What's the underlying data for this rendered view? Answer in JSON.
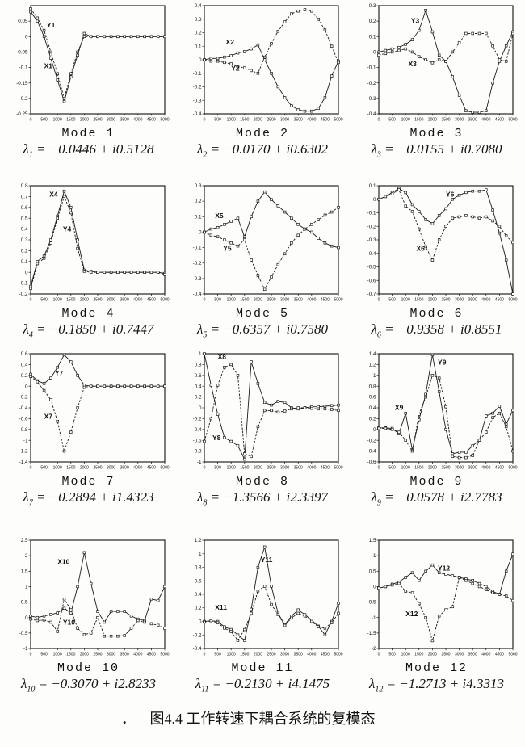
{
  "figure": {
    "caption": "图4.4 工作转速下耦合系统的复模态",
    "stray_mark": "."
  },
  "shared_x": {
    "label": "",
    "ticks": [
      0,
      500,
      1000,
      1500,
      2000,
      2500,
      3000,
      3500,
      4000,
      4500,
      5000
    ],
    "points": [
      0,
      250,
      500,
      750,
      1000,
      1250,
      1500,
      1750,
      2000,
      2250,
      2500,
      2750,
      3000,
      3250,
      3500,
      3750,
      4000,
      4250,
      4500,
      4750,
      5000
    ],
    "xlim": [
      0,
      5000
    ],
    "grid": false,
    "legend": "in-plot series labels"
  },
  "chart_data": [
    {
      "type": "line",
      "mode_label": "Mode 1",
      "lambda": {
        "sub": "1",
        "real": "−0.0446",
        "imag": "0.5128"
      },
      "ylim": [
        -0.25,
        0.1
      ],
      "yticks": [
        0.05,
        0,
        -0.05,
        -0.1,
        -0.15,
        -0.2,
        -0.25
      ],
      "series": [
        {
          "name": "X1",
          "dash": false,
          "label_pos": [
            0.1,
            0.58
          ],
          "values": [
            0.08,
            0.05,
            0.0,
            -0.07,
            -0.14,
            -0.21,
            -0.13,
            -0.06,
            0.01,
            0,
            0,
            0,
            0,
            0,
            0,
            0,
            0,
            0,
            0,
            0,
            0
          ]
        },
        {
          "name": "Y1",
          "dash": true,
          "label_pos": [
            0.12,
            0.2
          ],
          "values": [
            0.09,
            0.06,
            0.02,
            -0.05,
            -0.12,
            -0.2,
            -0.12,
            -0.05,
            0.0,
            0,
            0,
            0,
            0,
            0,
            0,
            0,
            0,
            0,
            0,
            0,
            0
          ]
        }
      ]
    },
    {
      "type": "line",
      "mode_label": "Mode 2",
      "lambda": {
        "sub": "2",
        "real": "−0.0170",
        "imag": "0.6302"
      },
      "ylim": [
        -0.4,
        0.4
      ],
      "yticks": [
        0.4,
        0.3,
        0.2,
        0.1,
        0,
        -0.1,
        -0.2,
        -0.3,
        -0.4
      ],
      "series": [
        {
          "name": "X2",
          "dash": false,
          "label_pos": [
            0.16,
            0.36
          ],
          "values": [
            0.0,
            0.01,
            0.01,
            0.02,
            0.03,
            0.05,
            0.06,
            0.08,
            0.11,
            0.0,
            -0.1,
            -0.2,
            -0.28,
            -0.34,
            -0.37,
            -0.38,
            -0.38,
            -0.36,
            -0.28,
            -0.12,
            -0.01
          ]
        },
        {
          "name": "Y2",
          "dash": true,
          "label_pos": [
            0.2,
            0.6
          ],
          "values": [
            0.0,
            -0.01,
            -0.01,
            -0.02,
            -0.03,
            -0.05,
            -0.06,
            -0.08,
            -0.1,
            0.02,
            0.12,
            0.21,
            0.28,
            0.34,
            0.36,
            0.37,
            0.36,
            0.3,
            0.22,
            0.1,
            -0.02
          ]
        }
      ]
    },
    {
      "type": "line",
      "mode_label": "Mode 3",
      "lambda": {
        "sub": "3",
        "real": "−0.0155",
        "imag": "0.7080"
      },
      "ylim": [
        -0.4,
        0.3
      ],
      "yticks": [
        0.3,
        0.2,
        0.1,
        0,
        -0.1,
        -0.2,
        -0.3,
        -0.4
      ],
      "series": [
        {
          "name": "Y3",
          "dash": false,
          "label_pos": [
            0.24,
            0.16
          ],
          "values": [
            0.0,
            0.01,
            0.02,
            0.03,
            0.05,
            0.08,
            0.14,
            0.27,
            0.13,
            -0.02,
            -0.06,
            -0.16,
            -0.28,
            -0.38,
            -0.39,
            -0.39,
            -0.38,
            -0.2,
            -0.06,
            0.04,
            0.13
          ]
        },
        {
          "name": "X3",
          "dash": true,
          "label_pos": [
            0.22,
            0.56
          ],
          "values": [
            -0.02,
            -0.01,
            0.0,
            0.01,
            0.02,
            0.0,
            -0.03,
            -0.05,
            -0.07,
            -0.05,
            -0.06,
            0.0,
            0.06,
            0.12,
            0.12,
            0.12,
            0.12,
            0.04,
            -0.05,
            -0.06,
            0.12
          ]
        }
      ]
    },
    {
      "type": "line",
      "mode_label": "Mode 4",
      "lambda": {
        "sub": "4",
        "real": "−0.1850",
        "imag": "0.7447"
      },
      "ylim": [
        -0.2,
        0.8
      ],
      "yticks": [
        0.8,
        0.7,
        0.6,
        0.5,
        0.4,
        0.3,
        0.2,
        0.1,
        0,
        -0.1,
        -0.2
      ],
      "series": [
        {
          "name": "X4",
          "dash": false,
          "label_pos": [
            0.14,
            0.1
          ],
          "values": [
            -0.13,
            0.1,
            0.15,
            0.3,
            0.52,
            0.75,
            0.6,
            0.3,
            0.02,
            0.01,
            0.0,
            0.0,
            0.0,
            0.0,
            0.0,
            0.0,
            0.0,
            0.0,
            0.0,
            0.0,
            -0.01
          ]
        },
        {
          "name": "Y4",
          "dash": true,
          "label_pos": [
            0.24,
            0.42
          ],
          "values": [
            -0.15,
            0.08,
            0.13,
            0.27,
            0.5,
            0.7,
            0.55,
            0.22,
            0.01,
            0.0,
            0.0,
            0.0,
            0.0,
            0.0,
            0.0,
            0.0,
            0.0,
            0.0,
            0.0,
            0.0,
            -0.02
          ]
        }
      ]
    },
    {
      "type": "line",
      "mode_label": "Mode 5",
      "lambda": {
        "sub": "5",
        "real": "−0.6357",
        "imag": "0.7580"
      },
      "ylim": [
        -0.4,
        0.3
      ],
      "yticks": [
        0.3,
        0.2,
        0.1,
        0,
        -0.1,
        -0.2,
        -0.3,
        -0.4
      ],
      "series": [
        {
          "name": "X5",
          "dash": false,
          "label_pos": [
            0.08,
            0.3
          ],
          "values": [
            0.0,
            0.02,
            0.03,
            0.05,
            0.07,
            0.09,
            -0.03,
            0.1,
            0.2,
            0.26,
            0.21,
            0.17,
            0.13,
            0.09,
            0.05,
            0.02,
            0.0,
            -0.04,
            -0.07,
            -0.09,
            -0.1
          ]
        },
        {
          "name": "Y5",
          "dash": true,
          "label_pos": [
            0.14,
            0.6
          ],
          "values": [
            0.0,
            -0.02,
            -0.03,
            -0.05,
            -0.07,
            -0.09,
            -0.05,
            -0.18,
            -0.28,
            -0.37,
            -0.29,
            -0.21,
            -0.14,
            -0.07,
            -0.02,
            0.02,
            0.05,
            0.08,
            0.11,
            0.13,
            0.16
          ]
        }
      ]
    },
    {
      "type": "line",
      "mode_label": "Mode 6",
      "lambda": {
        "sub": "6",
        "real": "−0.9358",
        "imag": "0.8551"
      },
      "ylim": [
        -0.7,
        0.1
      ],
      "yticks": [
        0.1,
        0,
        -0.1,
        -0.2,
        -0.3,
        -0.4,
        -0.5,
        -0.6,
        -0.7
      ],
      "series": [
        {
          "name": "Y6",
          "dash": false,
          "label_pos": [
            0.5,
            0.1
          ],
          "values": [
            0.0,
            0.02,
            0.05,
            0.08,
            0.05,
            -0.04,
            -0.09,
            -0.15,
            -0.18,
            -0.12,
            -0.07,
            0.0,
            0.03,
            0.05,
            0.06,
            0.06,
            0.07,
            -0.08,
            -0.25,
            -0.45,
            -0.7
          ]
        },
        {
          "name": "X6",
          "dash": true,
          "label_pos": [
            0.28,
            0.6
          ],
          "values": [
            0.0,
            0.02,
            0.04,
            0.07,
            -0.05,
            -0.09,
            -0.22,
            -0.35,
            -0.45,
            -0.3,
            -0.2,
            -0.14,
            -0.13,
            -0.12,
            -0.13,
            -0.14,
            -0.13,
            -0.16,
            -0.2,
            -0.27,
            -0.32
          ]
        }
      ]
    },
    {
      "type": "line",
      "mode_label": "Mode 7",
      "lambda": {
        "sub": "7",
        "real": "−0.2894",
        "imag": "1.4323"
      },
      "ylim": [
        -1.4,
        0.6
      ],
      "yticks": [
        0.6,
        0.4,
        0.2,
        0,
        -0.2,
        -0.4,
        -0.6,
        -0.8,
        -1,
        -1.2,
        -1.4
      ],
      "series": [
        {
          "name": "Y7",
          "dash": false,
          "label_pos": [
            0.18,
            0.2
          ],
          "values": [
            0.22,
            0.1,
            0.05,
            0.15,
            0.35,
            0.58,
            0.45,
            0.2,
            0.02,
            0,
            0,
            0,
            0,
            0,
            0,
            0,
            0,
            0,
            0,
            0,
            0
          ]
        },
        {
          "name": "X7",
          "dash": true,
          "label_pos": [
            0.1,
            0.6
          ],
          "values": [
            0.18,
            0.08,
            -0.08,
            -0.25,
            -0.65,
            -1.2,
            -0.85,
            -0.4,
            -0.02,
            0,
            0,
            0,
            0,
            0,
            0,
            0,
            0,
            0,
            0,
            0,
            0
          ]
        }
      ]
    },
    {
      "type": "line",
      "mode_label": "Mode 8",
      "lambda": {
        "sub": "8",
        "real": "−1.3566",
        "imag": "2.3397"
      },
      "ylim": [
        -1,
        1
      ],
      "yticks": [
        1,
        0.8,
        0.6,
        0.4,
        0.2,
        0,
        -0.2,
        -0.4,
        -0.6,
        -0.8,
        -1
      ],
      "series": [
        {
          "name": "X8",
          "dash": false,
          "label_pos": [
            0.1,
            0.05
          ],
          "values": [
            1.0,
            0.42,
            -0.12,
            -0.55,
            -0.62,
            -0.7,
            -0.95,
            0.85,
            0.45,
            0.1,
            0.05,
            0.12,
            0.1,
            0.0,
            -0.02,
            0.0,
            0.02,
            0.02,
            0.03,
            0.04,
            0.05
          ]
        },
        {
          "name": "Y8",
          "dash": true,
          "label_pos": [
            0.06,
            0.8
          ],
          "values": [
            -0.62,
            -0.2,
            0.42,
            0.75,
            0.8,
            0.6,
            -0.85,
            -0.9,
            -0.35,
            -0.05,
            -0.05,
            -0.08,
            -0.06,
            -0.02,
            0.0,
            0.0,
            -0.01,
            -0.02,
            -0.02,
            -0.03,
            -0.05
          ]
        }
      ]
    },
    {
      "type": "line",
      "mode_label": "Mode 9",
      "lambda": {
        "sub": "9",
        "real": "−0.0578",
        "imag": "2.7783"
      },
      "ylim": [
        -0.6,
        1.4
      ],
      "yticks": [
        1.4,
        1.2,
        1,
        0.8,
        0.6,
        0.4,
        0.2,
        0,
        -0.2,
        -0.4,
        -0.6
      ],
      "series": [
        {
          "name": "Y9",
          "dash": false,
          "label_pos": [
            0.44,
            0.1
          ],
          "values": [
            0.03,
            0.03,
            0.02,
            -0.08,
            0.3,
            -0.38,
            0.18,
            0.65,
            1.38,
            0.7,
            0.0,
            -0.45,
            -0.42,
            -0.42,
            -0.3,
            -0.2,
            0.25,
            0.3,
            0.43,
            0.1,
            0.35
          ]
        },
        {
          "name": "X9",
          "dash": true,
          "label_pos": [
            0.12,
            0.52
          ],
          "values": [
            0.02,
            0.02,
            0.0,
            -0.05,
            -0.2,
            -0.4,
            0.28,
            0.6,
            1.0,
            0.95,
            0.42,
            -0.5,
            -0.52,
            -0.52,
            -0.48,
            -0.2,
            -0.05,
            0.22,
            0.3,
            0.05,
            -0.4
          ]
        }
      ]
    },
    {
      "type": "line",
      "mode_label": "Mode 10",
      "lambda": {
        "sub": "10",
        "real": "−0.3070",
        "imag": "2.8233"
      },
      "ylim": [
        -1,
        2.5
      ],
      "yticks": [
        2.5,
        2,
        1.5,
        1,
        0.5,
        0,
        -0.5,
        -1
      ],
      "series": [
        {
          "name": "X10",
          "dash": false,
          "label_pos": [
            0.2,
            0.22
          ],
          "values": [
            0.05,
            0.0,
            0.05,
            0.1,
            0.15,
            0.3,
            0.15,
            1.0,
            2.1,
            1.1,
            0.2,
            -0.15,
            0.2,
            0.2,
            0.2,
            0.05,
            -0.05,
            -0.1,
            0.6,
            0.55,
            1.0
          ]
        },
        {
          "name": "Y10",
          "dash": true,
          "label_pos": [
            0.24,
            0.78
          ],
          "values": [
            -0.05,
            -0.1,
            -0.08,
            -0.15,
            -0.45,
            0.6,
            0.25,
            -0.35,
            -0.55,
            -0.5,
            0.0,
            -0.6,
            -0.6,
            -0.6,
            -0.58,
            -0.35,
            -0.1,
            -0.15,
            -0.2,
            -0.25,
            -0.35
          ]
        }
      ]
    },
    {
      "type": "line",
      "mode_label": "Mode 11",
      "lambda": {
        "sub": "11",
        "real": "−0.2130",
        "imag": "4.1475"
      },
      "ylim": [
        -0.4,
        1.2
      ],
      "yticks": [
        1.2,
        1,
        0.8,
        0.6,
        0.4,
        0.2,
        0,
        -0.2,
        -0.4
      ],
      "series": [
        {
          "name": "Y11",
          "dash": false,
          "label_pos": [
            0.42,
            0.2
          ],
          "values": [
            0.0,
            0.01,
            0.0,
            -0.08,
            -0.12,
            -0.2,
            -0.28,
            0.18,
            0.8,
            1.1,
            0.52,
            0.12,
            -0.05,
            0.08,
            0.17,
            0.1,
            0.02,
            -0.07,
            -0.2,
            0.0,
            0.27
          ]
        },
        {
          "name": "X11",
          "dash": true,
          "label_pos": [
            0.08,
            0.64
          ],
          "values": [
            -0.01,
            0.01,
            -0.02,
            -0.1,
            -0.15,
            -0.28,
            -0.12,
            0.12,
            0.45,
            0.52,
            0.25,
            0.1,
            -0.06,
            0.05,
            0.12,
            0.08,
            0.0,
            -0.08,
            -0.1,
            -0.02,
            0.12
          ]
        }
      ]
    },
    {
      "type": "line",
      "mode_label": "Mode 12",
      "lambda": {
        "sub": "12",
        "real": "−1.2713",
        "imag": "4.3313"
      },
      "ylim": [
        -2,
        1.5
      ],
      "yticks": [
        1.5,
        1,
        0.5,
        0,
        -0.5,
        -1,
        -1.5,
        -2
      ],
      "series": [
        {
          "name": "Y12",
          "dash": false,
          "label_pos": [
            0.44,
            0.28
          ],
          "values": [
            -0.05,
            0.0,
            0.08,
            0.15,
            0.3,
            0.45,
            0.2,
            0.5,
            0.7,
            0.45,
            0.4,
            0.35,
            0.3,
            0.25,
            0.2,
            0.1,
            0.0,
            -0.15,
            -0.25,
            0.5,
            1.05
          ]
        },
        {
          "name": "X12",
          "dash": true,
          "label_pos": [
            0.2,
            0.7
          ],
          "values": [
            -0.05,
            0.0,
            0.05,
            0.1,
            -0.15,
            -0.2,
            -0.55,
            -1.0,
            -1.75,
            -0.95,
            -0.75,
            -0.65,
            0.3,
            0.2,
            0.1,
            0.0,
            -0.1,
            -0.2,
            -0.25,
            -0.3,
            -0.45
          ]
        }
      ]
    }
  ]
}
